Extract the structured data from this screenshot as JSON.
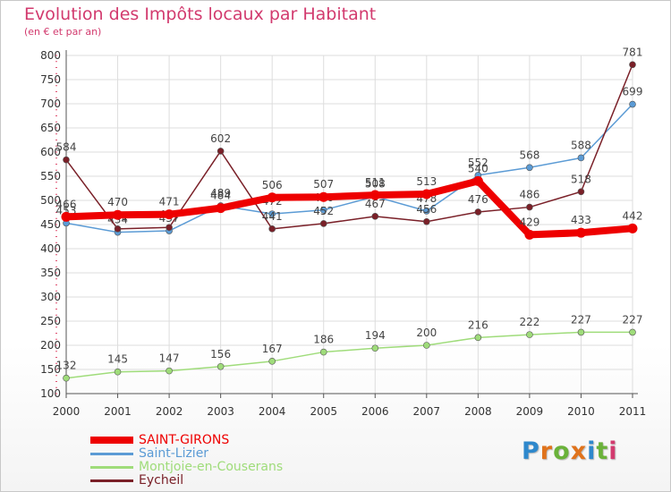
{
  "header": {
    "title": "Evolution des Impôts locaux par Habitant",
    "subtitle": "(en € et par an)"
  },
  "logo": {
    "text": [
      "P",
      "r",
      "o",
      "x",
      "i",
      "t",
      "i"
    ],
    "colors": [
      "#2e88cc",
      "#e0731c",
      "#6ab23a",
      "#e0731c",
      "#2e88cc",
      "#6ab23a",
      "#d23a6e"
    ]
  },
  "chart_data": {
    "type": "line",
    "x": [
      "2000",
      "2001",
      "2002",
      "2003",
      "2004",
      "2005",
      "2006",
      "2007",
      "2008",
      "2009",
      "2010",
      "2011"
    ],
    "ylim": [
      100,
      800
    ],
    "yticks": [
      100,
      150,
      200,
      250,
      300,
      350,
      400,
      450,
      500,
      550,
      600,
      650,
      700,
      750,
      800
    ],
    "grid": true,
    "legend_position": "bottom-left",
    "series": [
      {
        "name": "Saint-Lizier",
        "color": "#5b9bd5",
        "values": [
          453,
          434,
          437,
          489,
          472,
          480,
          508,
          478,
          552,
          568,
          588,
          699
        ]
      },
      {
        "name": "Eycheil",
        "color": "#7a2028",
        "values": [
          584,
          441,
          444,
          602,
          441,
          452,
          467,
          456,
          476,
          486,
          518,
          781
        ]
      },
      {
        "name": "Montjoie-en-Couserans",
        "color": "#9fdc7a",
        "values": [
          132,
          145,
          147,
          156,
          167,
          186,
          194,
          200,
          216,
          222,
          227,
          227
        ]
      },
      {
        "name": "SAINT-GIRONS",
        "color": "#ee0000",
        "values": [
          466,
          470,
          471,
          484,
          506,
          507,
          511,
          513,
          540,
          429,
          433,
          442
        ]
      }
    ],
    "legend_order": [
      "SAINT-GIRONS",
      "Saint-Lizier",
      "Montjoie-en-Couserans",
      "Eycheil"
    ]
  }
}
